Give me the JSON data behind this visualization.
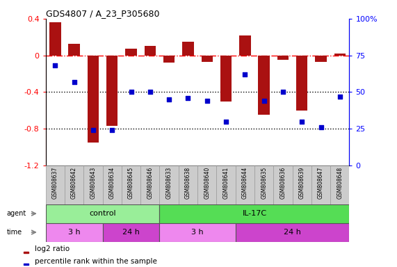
{
  "title": "GDS4807 / A_23_P305680",
  "samples": [
    "GSM808637",
    "GSM808642",
    "GSM808643",
    "GSM808634",
    "GSM808645",
    "GSM808646",
    "GSM808633",
    "GSM808638",
    "GSM808640",
    "GSM808641",
    "GSM808644",
    "GSM808635",
    "GSM808636",
    "GSM808639",
    "GSM808647",
    "GSM808648"
  ],
  "log2_ratio": [
    0.36,
    0.13,
    -0.95,
    -0.77,
    0.07,
    0.1,
    -0.08,
    0.15,
    -0.07,
    -0.5,
    0.22,
    -0.65,
    -0.05,
    -0.6,
    -0.07,
    0.02
  ],
  "percentile": [
    68,
    57,
    24,
    24,
    50,
    50,
    45,
    46,
    44,
    30,
    62,
    44,
    50,
    30,
    26,
    47
  ],
  "bar_color": "#aa1111",
  "dot_color": "#0000cc",
  "ylim_left": [
    -1.2,
    0.4
  ],
  "ylim_right": [
    0,
    100
  ],
  "yticks_left": [
    -1.2,
    -0.8,
    -0.4,
    0.0,
    0.4
  ],
  "yticks_right": [
    0,
    25,
    50,
    75,
    100
  ],
  "ytick_left_labels": [
    "-1.2",
    "-0.8",
    "-0.4",
    "0",
    "0.4"
  ],
  "ytick_right_labels": [
    "0",
    "25",
    "50",
    "75",
    "100%"
  ],
  "dotted_lines": [
    -0.4,
    -0.8
  ],
  "agent_groups": [
    {
      "label": "control",
      "start": 0,
      "end": 6,
      "color": "#99ee99"
    },
    {
      "label": "IL-17C",
      "start": 6,
      "end": 16,
      "color": "#55dd55"
    }
  ],
  "time_groups": [
    {
      "label": "3 h",
      "start": 0,
      "end": 3,
      "color": "#ee88ee"
    },
    {
      "label": "24 h",
      "start": 3,
      "end": 6,
      "color": "#cc44cc"
    },
    {
      "label": "3 h",
      "start": 6,
      "end": 10,
      "color": "#ee88ee"
    },
    {
      "label": "24 h",
      "start": 10,
      "end": 16,
      "color": "#cc44cc"
    }
  ],
  "legend_items": [
    {
      "label": "log2 ratio",
      "color": "#aa1111"
    },
    {
      "label": "percentile rank within the sample",
      "color": "#0000cc"
    }
  ],
  "background_color": "#ffffff",
  "label_bg": "#cccccc",
  "label_edge": "#999999"
}
